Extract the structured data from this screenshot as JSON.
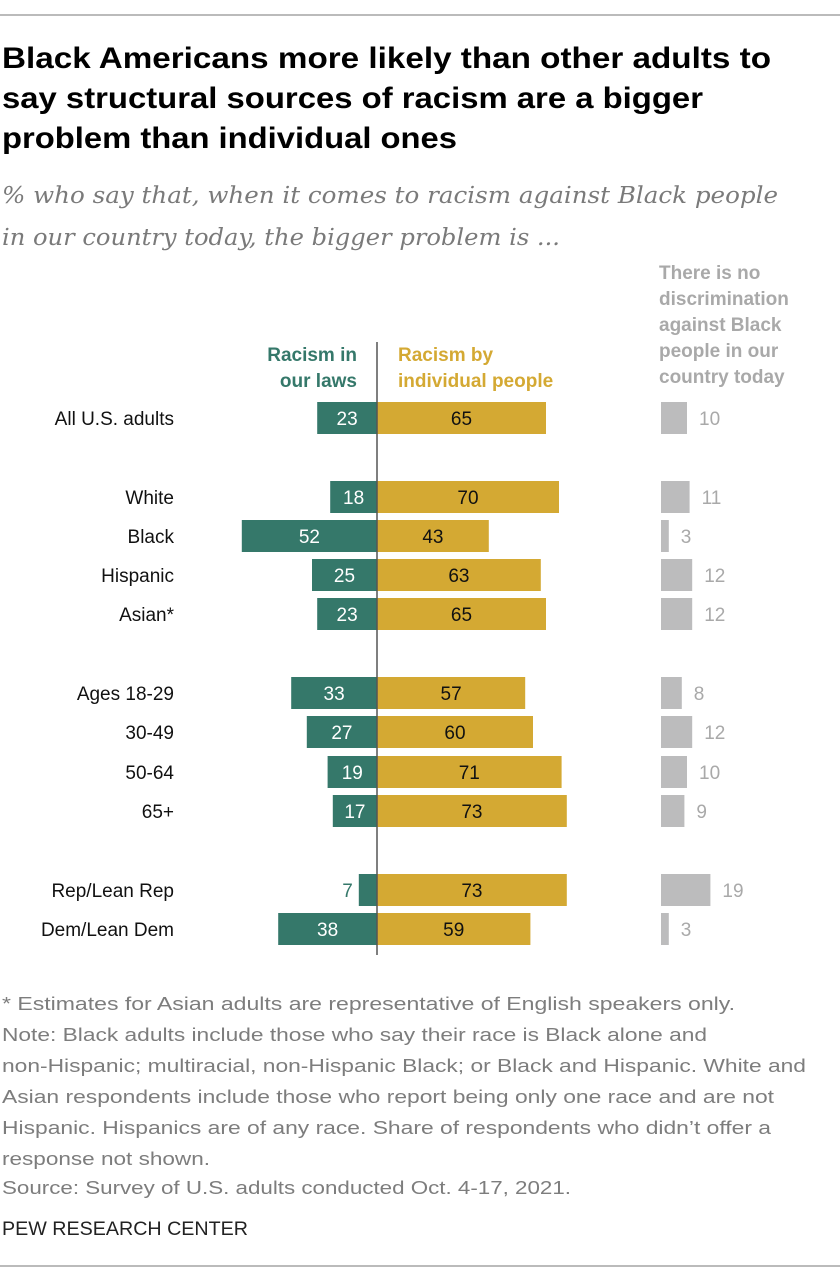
{
  "title_lines": [
    "Black Americans more likely than other adults to",
    "say structural sources of racism are a bigger",
    "problem than individual ones"
  ],
  "subtitle_lines": [
    "% who say that, when it comes to racism against Black people",
    "in our country today, the bigger problem is ..."
  ],
  "colors": {
    "laws": "#35786a",
    "individual": "#d4a933",
    "none": "#bcbcbd",
    "none_text": "#a9a9a9",
    "axis": "#555555"
  },
  "chart_data": {
    "type": "bar",
    "orientation": "horizontal diverging",
    "series": [
      {
        "name": "Racism in our laws",
        "name_lines": [
          "Racism in",
          "our laws"
        ],
        "values": [
          23,
          18,
          52,
          25,
          23,
          33,
          27,
          19,
          17,
          7,
          38
        ]
      },
      {
        "name": "Racism by individual people",
        "name_lines": [
          "Racism by",
          "individual people"
        ],
        "values": [
          65,
          70,
          43,
          63,
          65,
          57,
          60,
          71,
          73,
          73,
          59
        ]
      },
      {
        "name": "There is no discrimination against Black people in our country today",
        "name_lines": [
          "There is no",
          "discrimination",
          "against Black",
          "people in our",
          "country today"
        ],
        "values": [
          10,
          11,
          3,
          12,
          12,
          8,
          12,
          10,
          9,
          19,
          3
        ]
      }
    ],
    "categories": [
      "All U.S. adults",
      "White",
      "Black",
      "Hispanic",
      "Asian*",
      "Ages 18-29",
      "30-49",
      "50-64",
      "65+",
      "Rep/Lean Rep",
      "Dem/Lean Dem"
    ],
    "groups": [
      [
        0
      ],
      [
        1,
        2,
        3,
        4
      ],
      [
        5,
        6,
        7,
        8
      ],
      [
        9,
        10
      ]
    ]
  },
  "notes": [
    "* Estimates for Asian adults are representative of English speakers only.",
    "Note: Black adults include those who say their race is Black alone and",
    "non-Hispanic; multiracial, non-Hispanic Black; or Black and Hispanic. White and",
    "Asian respondents include those who report being only one race and are not",
    "Hispanic. Hispanics are of any race. Share of respondents who didn’t offer a",
    "response not shown.",
    "Source: Survey of U.S. adults conducted Oct. 4-17, 2021."
  ],
  "brand": "PEW RESEARCH CENTER"
}
